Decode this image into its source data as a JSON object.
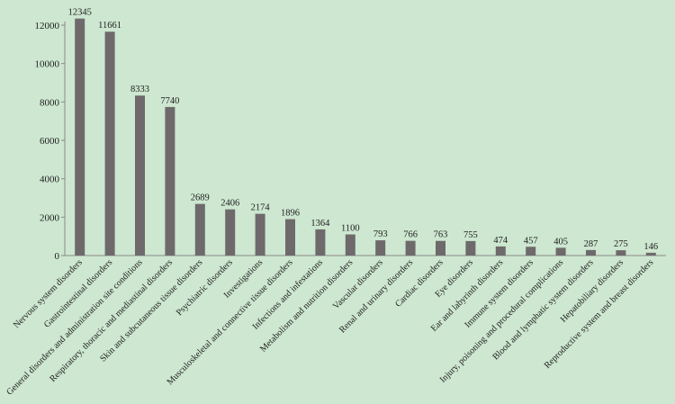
{
  "colors": {
    "background": "#cde7d0",
    "bar": "#6e6a6b",
    "axis": "#8a8a8a"
  },
  "chart_data": {
    "type": "bar",
    "title": "",
    "xlabel": "",
    "ylabel": "",
    "ylim": [
      0,
      12000
    ],
    "yticks": [
      0,
      2000,
      4000,
      6000,
      8000,
      10000,
      12000
    ],
    "grid": false,
    "legend": "none",
    "categories": [
      "Nervous system disorders",
      "Gastrointestinal disorders",
      "General disorders and administration site conditions",
      "Respiratory, thoracic and mediastinal disorders",
      "Skin and subcutaneous tissue disorders",
      "Psychiatric disorders",
      "Investigations",
      "Musculoskeletal and connective tissue disorders",
      "Infections and infestations",
      "Metabolism and nutrition disorders",
      "Vascular disorders",
      "Renal and urinary disorders",
      "Cardiac disorders",
      "Eye disorders",
      "Ear and labyrinth disorders",
      "Immune system disorders",
      "Injury, poisoning and procedural complications",
      "Blood and lymphatic system disorders",
      "Hepatobiliary disorders",
      "Reproductive system and breast disorders"
    ],
    "values": [
      12345,
      11661,
      8333,
      7740,
      2689,
      2406,
      2174,
      1896,
      1364,
      1100,
      793,
      766,
      763,
      755,
      474,
      457,
      405,
      287,
      275,
      146
    ]
  }
}
